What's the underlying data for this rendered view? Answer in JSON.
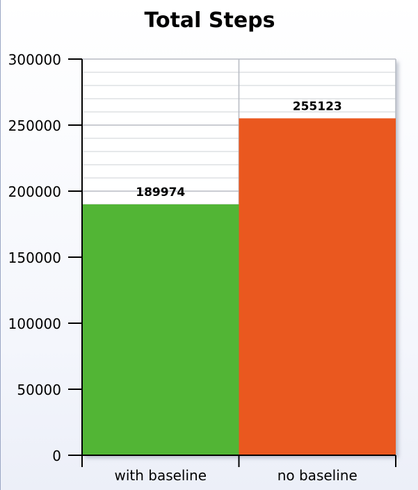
{
  "chart_data": {
    "type": "bar",
    "title": "Total Steps",
    "xlabel": "",
    "ylabel": "",
    "categories": [
      "with baseline",
      "no baseline"
    ],
    "values": [
      189974,
      255123
    ],
    "data_labels": [
      "189974",
      "255123"
    ],
    "colors": [
      "#52b535",
      "#ea581f"
    ],
    "ylim": [
      0,
      300000
    ],
    "yticks": [
      0,
      50000,
      100000,
      150000,
      200000,
      250000,
      300000
    ],
    "ytick_labels": [
      "0",
      "50000",
      "100000",
      "150000",
      "200000",
      "250000",
      "300000"
    ],
    "minor_grid_step": 10000,
    "grid": true,
    "legend": "none"
  }
}
